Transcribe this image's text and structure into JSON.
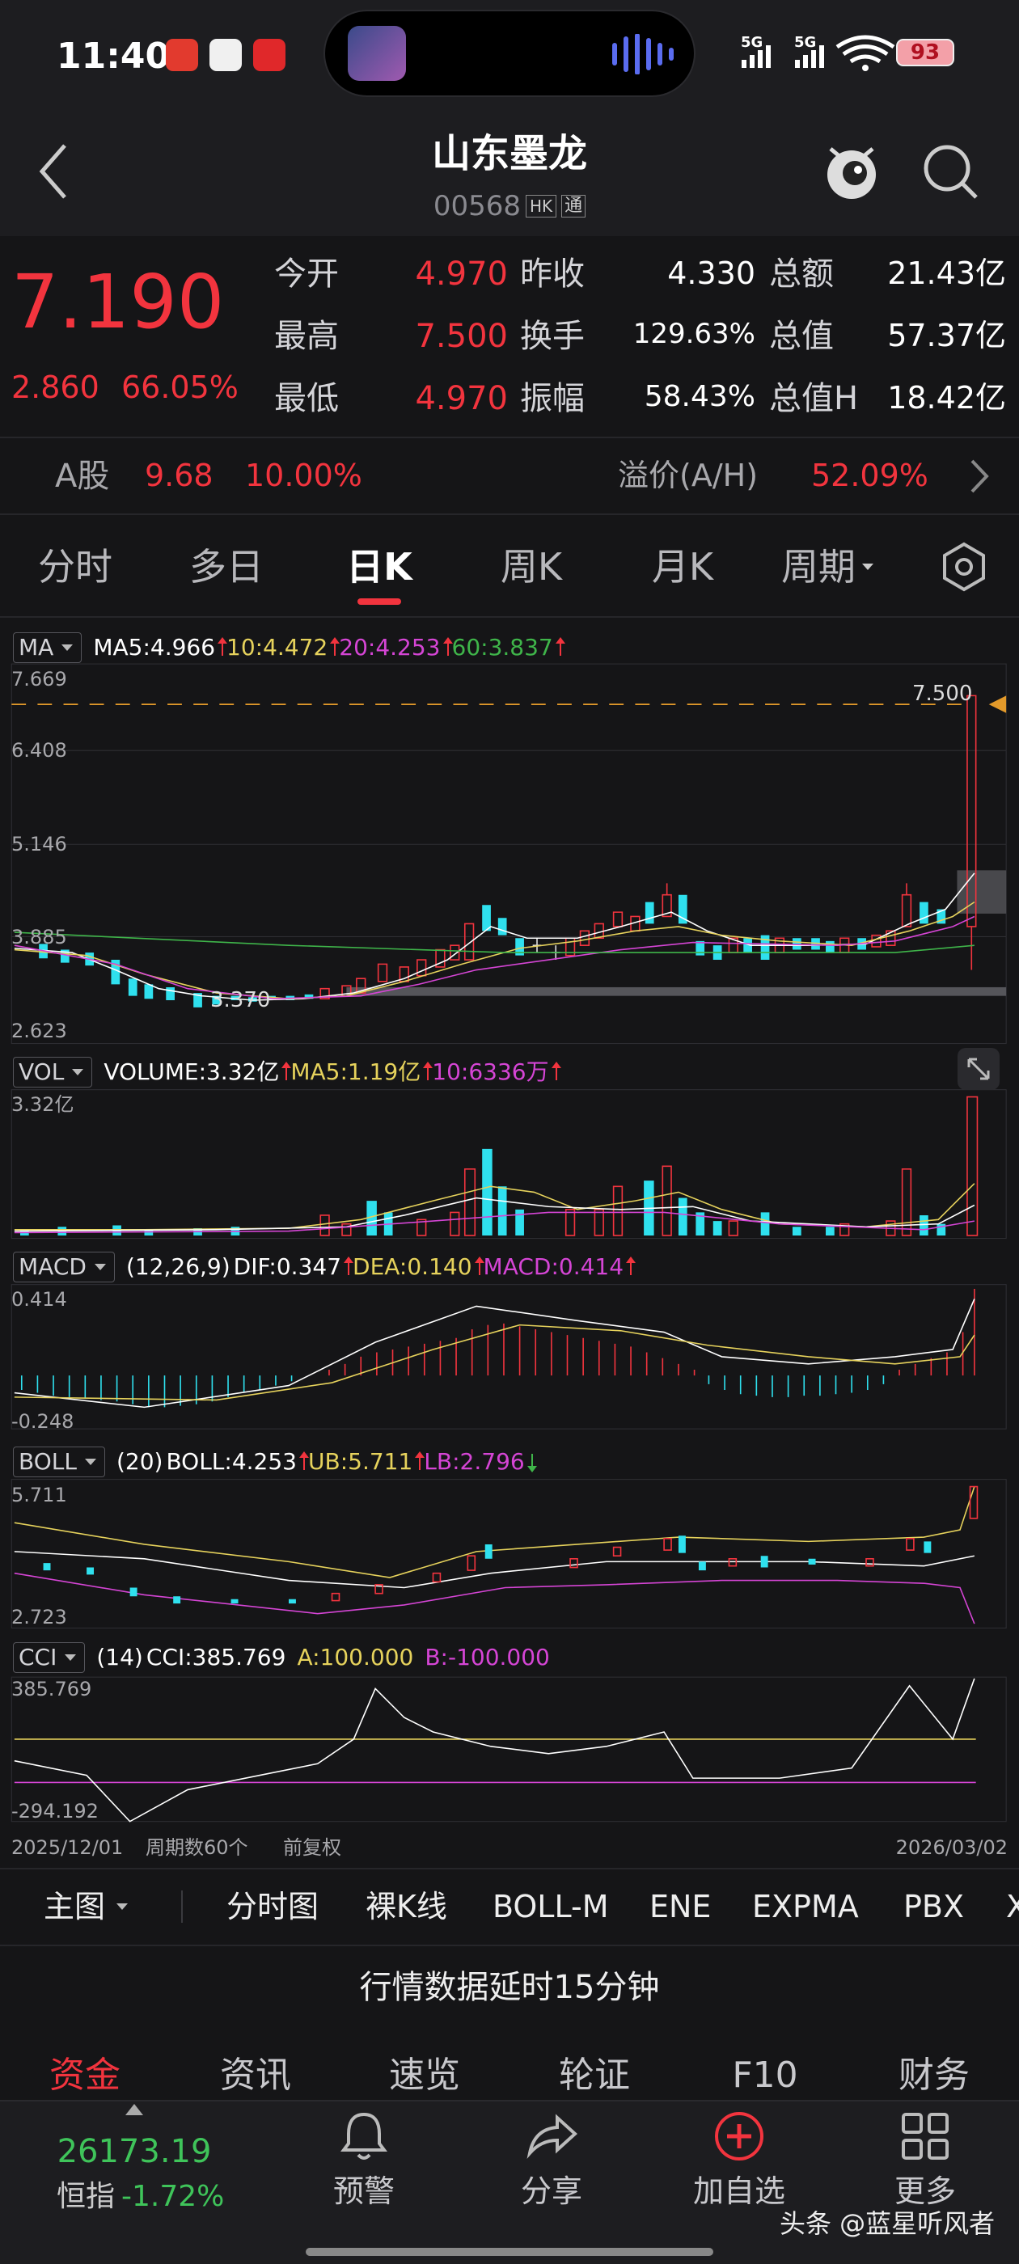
{
  "status_bar": {
    "time": "11:40",
    "signal": [
      "5G",
      "5G"
    ],
    "battery": "93"
  },
  "header": {
    "title": "山东墨龙",
    "code": "00568",
    "exchange": "HK",
    "connect": "通"
  },
  "quote": {
    "price": "7.190",
    "change": "2.860",
    "change_pct": "66.05%",
    "fields": [
      [
        {
          "label": "今开",
          "value": "4.970"
        },
        {
          "label": "昨收",
          "value": "4.330"
        },
        {
          "label": "总额",
          "value": "21.43亿"
        }
      ],
      [
        {
          "label": "最高",
          "value": "7.500"
        },
        {
          "label": "换手",
          "value": "129.63%"
        },
        {
          "label": "总值",
          "value": "57.37亿"
        }
      ],
      [
        {
          "label": "最低",
          "value": "4.970"
        },
        {
          "label": "振幅",
          "value": "58.43%"
        },
        {
          "label": "总值H",
          "value": "18.42亿"
        }
      ]
    ]
  },
  "a_share": {
    "label": "A股",
    "price": "9.68",
    "change_pct": "10.00%",
    "premium_label": "溢价(A/H)",
    "premium": "52.09%"
  },
  "tabs": [
    "分时",
    "多日",
    "日K",
    "周K",
    "月K",
    "周期"
  ],
  "panels": {
    "ma": {
      "selector": "MA",
      "legend": [
        "MA5:4.966",
        "10:4.472",
        "20:4.253",
        "60:3.837"
      ],
      "axis": [
        "7.669",
        "6.408",
        "5.146",
        "3.885",
        "2.623"
      ],
      "markers": [
        "7.500",
        "3.370"
      ]
    },
    "vol": {
      "selector": "VOL",
      "legend": [
        "VOLUME:3.32亿",
        "MA5:1.19亿",
        "10:6336万"
      ],
      "axis": [
        "3.32亿"
      ]
    },
    "macd": {
      "selector": "MACD",
      "params": "(12,26,9)",
      "legend": [
        "DIF:0.347",
        "DEA:0.140",
        "MACD:0.414"
      ],
      "axis": [
        "0.414",
        "-0.248"
      ]
    },
    "boll": {
      "selector": "BOLL",
      "params": "(20)",
      "legend": [
        "BOLL:4.253",
        "UB:5.711",
        "LB:2.796"
      ],
      "axis": [
        "5.711",
        "2.723"
      ]
    },
    "cci": {
      "selector": "CCI",
      "params": "(14)",
      "legend": [
        "CCI:385.769",
        "A:100.000",
        "B:-100.000"
      ],
      "axis": [
        "385.769",
        "-294.192"
      ]
    }
  },
  "footer": {
    "start": "2025/12/01",
    "count": "周期数60个",
    "adjust": "前复权",
    "end": "2026/03/02"
  },
  "toolbar": [
    "主图",
    "分时图",
    "裸K线",
    "BOLL-M",
    "ENE",
    "EXPMA",
    "PBX",
    "X"
  ],
  "notice": "行情数据延时15分钟",
  "bottom_tabs": [
    "资金",
    "资讯",
    "速览",
    "轮证",
    "F10",
    "财务"
  ],
  "nav": {
    "index_value": "26173.19",
    "index_name": "恒指",
    "index_change": "-1.72%",
    "items": [
      "预警",
      "分享",
      "加自选",
      "更多"
    ]
  },
  "watermark": "头条 @蓝星听风者"
}
